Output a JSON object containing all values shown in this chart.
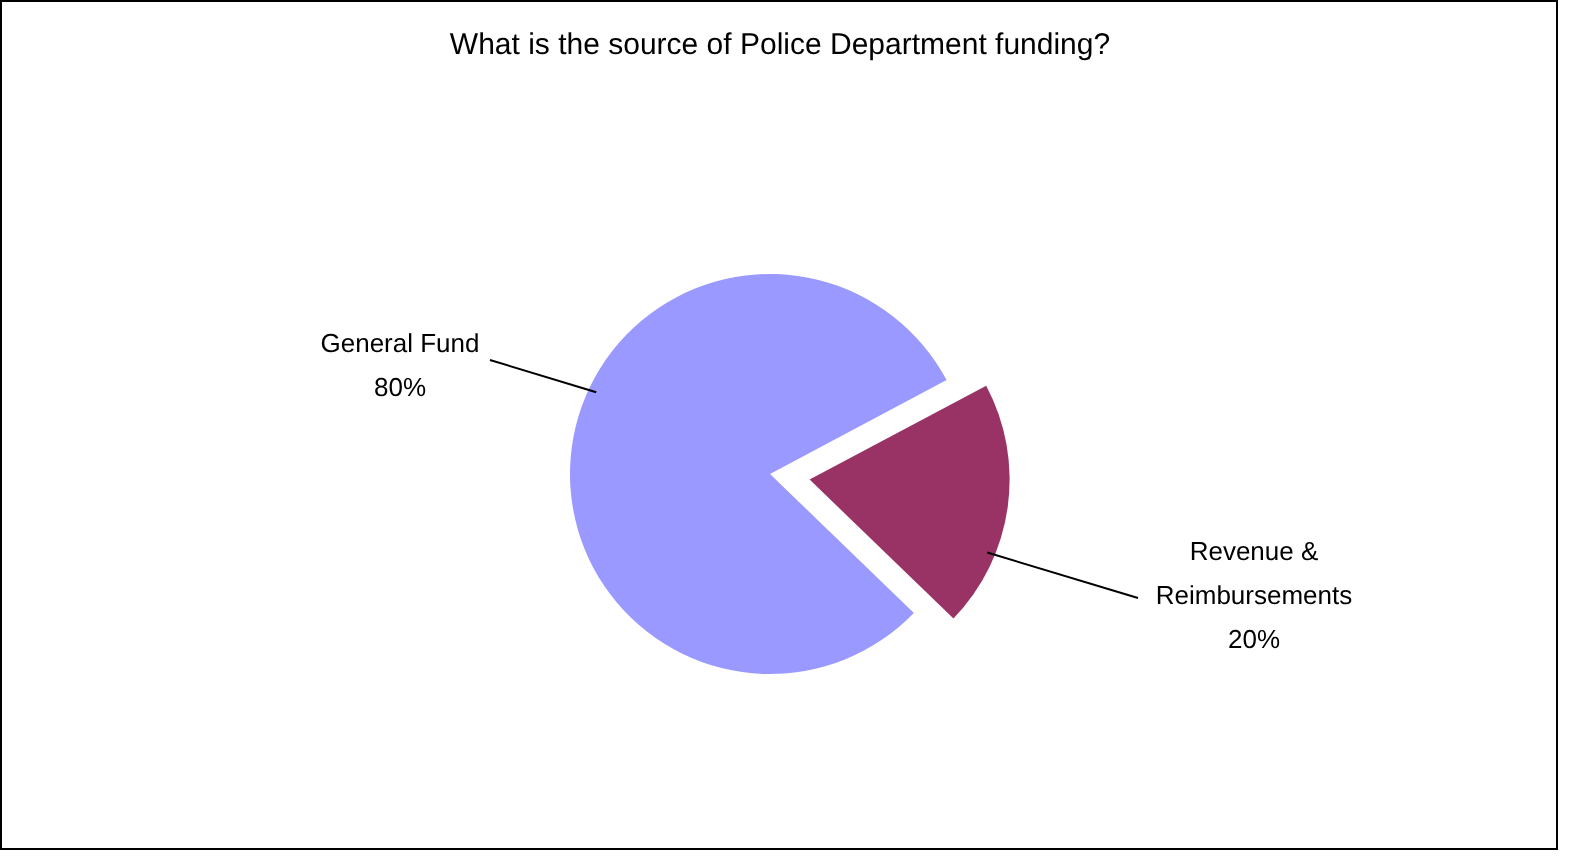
{
  "chart_data": {
    "type": "pie",
    "title": "What is the source of Police Department funding?",
    "categories": [
      "General Fund",
      "Revenue & Reimbursements"
    ],
    "values": [
      80,
      20
    ],
    "colors": [
      "#9999ff",
      "#993366"
    ],
    "value_labels": [
      "80%",
      "20%"
    ]
  }
}
